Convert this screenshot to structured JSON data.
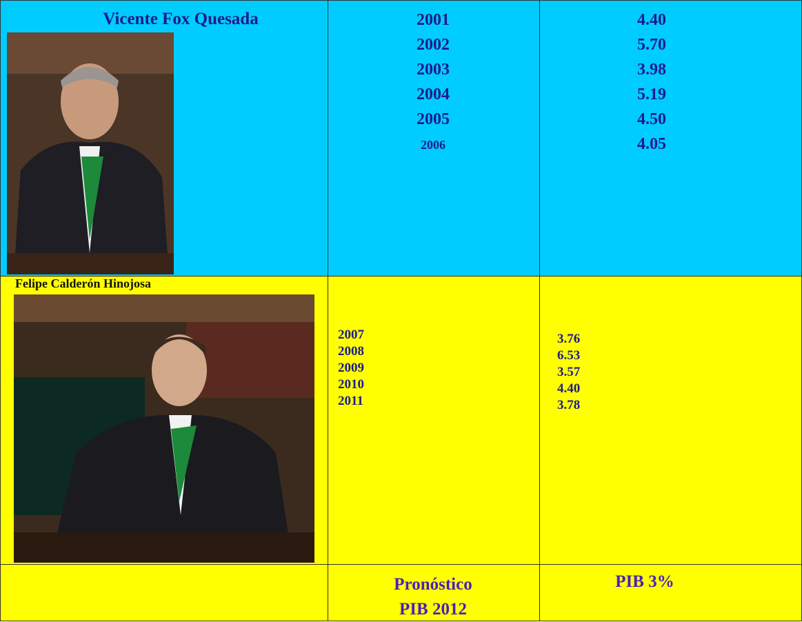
{
  "table": {
    "rows": [
      {
        "name": "Vicente Fox Quesada",
        "years": [
          2001,
          2002,
          2003,
          2004,
          2005,
          2006
        ],
        "values": [
          "4.40",
          "5.70",
          "3.98",
          "5.19",
          "4.50",
          "4.05"
        ]
      },
      {
        "name": "Felipe Calderón Hinojosa",
        "years": [
          2007,
          2008,
          2009,
          2010,
          2011
        ],
        "values": [
          "3.76",
          "6.53",
          "3.57",
          "4.40",
          "3.78"
        ]
      }
    ],
    "footer": {
      "label_lines": [
        "Pronóstico",
        "PIB 2012"
      ],
      "value": "PIB 3%"
    }
  }
}
